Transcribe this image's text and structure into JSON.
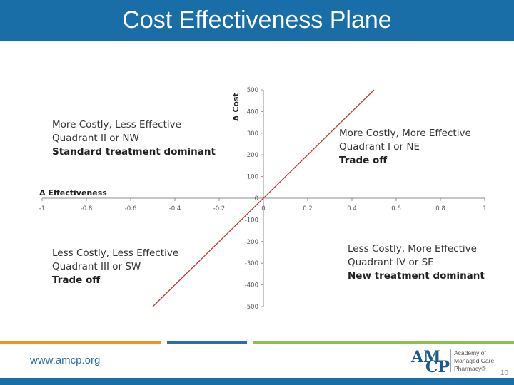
{
  "slide": {
    "title": "Cost Effectiveness Plane",
    "url": "www.amcp.org",
    "page_number": "10",
    "logo": {
      "letters_top": "AM",
      "letters_bottom": "CP",
      "line1": "Academy of",
      "line2": "Managed Care",
      "line3": "Pharmacy®"
    },
    "colors": {
      "header": "#1a6ea8",
      "footer_orange": "#f0922b",
      "footer_blue": "#2c6fa6",
      "footer_green": "#8cc152",
      "line": "#c0392b"
    }
  },
  "quadrants": {
    "nw": {
      "line1": "More Costly, Less Effective",
      "line2": "Quadrant II or NW",
      "line3": "Standard treatment dominant"
    },
    "ne": {
      "line1": "More Costly, More Effective",
      "line2": "Quadrant I or NE",
      "line3": "Trade off"
    },
    "sw": {
      "line1": "Less Costly, Less Effective",
      "line2": "Quadrant III or SW",
      "line3": "Trade off"
    },
    "se": {
      "line1": "Less Costly, More Effective",
      "line2": "Quadrant IV or SE",
      "line3": "New treatment dominant"
    }
  },
  "chart_data": {
    "type": "line",
    "xlabel": "Δ Effectiveness",
    "ylabel": "Δ Cost",
    "xlim": [
      -1,
      1
    ],
    "ylim": [
      -500,
      500
    ],
    "x_ticks": [
      "-1",
      "-0.8",
      "-0.6",
      "-0.4",
      "-0.2",
      "0",
      "0.2",
      "0.4",
      "0.6",
      "0.8",
      "1"
    ],
    "y_ticks": [
      "500",
      "400",
      "300",
      "200",
      "100",
      "0",
      "-100",
      "-200",
      "-300",
      "-400",
      "-500"
    ],
    "grid": false,
    "series": [
      {
        "x": [
          -0.5,
          0.5
        ],
        "y": [
          -500,
          500
        ],
        "color": "#c0392b"
      }
    ]
  }
}
